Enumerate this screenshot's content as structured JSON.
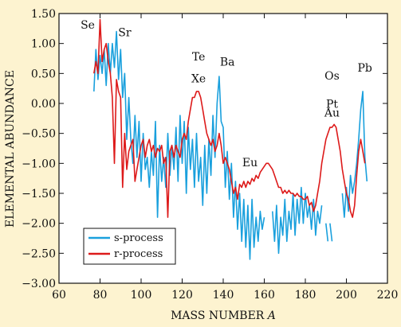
{
  "chart_data": {
    "type": "line",
    "title": "",
    "xlabel": "MASS NUMBER A",
    "ylabel": "ELEMENTAL ABUNDANCE",
    "xlim": [
      60,
      220
    ],
    "ylim": [
      -3.0,
      1.5
    ],
    "xticks": [
      "60",
      "80",
      "100",
      "120",
      "140",
      "160",
      "180",
      "200",
      "220"
    ],
    "yticks": [
      "1.50",
      "1.00",
      "0.50",
      "0.00",
      "−0.50",
      "−1.00",
      "−1.50",
      "−2.00",
      "−2.50",
      "−3.00"
    ],
    "grid": false,
    "legend": "bottom-left",
    "annotations": [
      {
        "text": "Se",
        "x": 74,
        "y": 1.25
      },
      {
        "text": "Sr",
        "x": 92,
        "y": 1.12
      },
      {
        "text": "Te",
        "x": 128,
        "y": 0.72
      },
      {
        "text": "Xe",
        "x": 128,
        "y": 0.35
      },
      {
        "text": "Ba",
        "x": 142,
        "y": 0.63
      },
      {
        "text": "Eu",
        "x": 153,
        "y": -1.05
      },
      {
        "text": "Os",
        "x": 193,
        "y": 0.4
      },
      {
        "text": "Pt",
        "x": 193,
        "y": -0.07
      },
      {
        "text": "Au",
        "x": 193,
        "y": -0.22
      },
      {
        "text": "Pb",
        "x": 209,
        "y": 0.53
      }
    ],
    "series": [
      {
        "name": "s-process",
        "color": "#1aa0dd",
        "segments": [
          [
            [
              77,
              0.2
            ],
            [
              78,
              0.9
            ],
            [
              79,
              0.4
            ],
            [
              80,
              0.8
            ],
            [
              81,
              0.5
            ],
            [
              82,
              0.9
            ],
            [
              83,
              0.3
            ],
            [
              84,
              1.0
            ],
            [
              85,
              0.5
            ],
            [
              86,
              1.0
            ],
            [
              87,
              0.6
            ],
            [
              88,
              1.2
            ],
            [
              89,
              0.4
            ],
            [
              90,
              0.9
            ],
            [
              91,
              0.1
            ],
            [
              92,
              0.5
            ],
            [
              93,
              -0.6
            ],
            [
              94,
              0.1
            ],
            [
              95,
              -0.6
            ],
            [
              96,
              -1.0
            ],
            [
              97,
              -0.2
            ],
            [
              98,
              -0.9
            ],
            [
              99,
              -0.3
            ],
            [
              100,
              -1.3
            ],
            [
              101,
              -0.5
            ],
            [
              102,
              -1.1
            ],
            [
              103,
              -0.9
            ],
            [
              104,
              -1.4
            ],
            [
              105,
              -0.8
            ],
            [
              106,
              -1.2
            ],
            [
              107,
              -0.3
            ],
            [
              108,
              -1.9
            ],
            [
              109,
              -0.7
            ],
            [
              110,
              -1.3
            ],
            [
              111,
              -0.9
            ],
            [
              112,
              -1.4
            ],
            [
              113,
              -0.5
            ],
            [
              114,
              -1.2
            ],
            [
              115,
              -0.7
            ],
            [
              116,
              -1.1
            ],
            [
              117,
              -0.4
            ],
            [
              118,
              -1.3
            ],
            [
              119,
              -0.2
            ],
            [
              120,
              -1.0
            ],
            [
              121,
              -0.3
            ],
            [
              122,
              -1.5
            ],
            [
              123,
              -0.4
            ],
            [
              124,
              -1.1
            ],
            [
              125,
              -0.6
            ],
            [
              126,
              -1.4
            ],
            [
              127,
              -0.5
            ],
            [
              128,
              -1.3
            ],
            [
              129,
              -0.9
            ],
            [
              130,
              -1.7
            ],
            [
              131,
              -0.7
            ],
            [
              132,
              -1.5
            ],
            [
              133,
              -0.6
            ],
            [
              134,
              -1.2
            ],
            [
              135,
              -0.2
            ],
            [
              136,
              -0.9
            ],
            [
              137,
              0.0
            ],
            [
              138,
              0.45
            ],
            [
              139,
              -0.3
            ],
            [
              140,
              -0.4
            ],
            [
              141,
              -1.4
            ],
            [
              142,
              -0.8
            ],
            [
              143,
              -1.6
            ],
            [
              144,
              -1.0
            ],
            [
              145,
              -1.9
            ],
            [
              146,
              -1.3
            ],
            [
              147,
              -2.1
            ],
            [
              148,
              -1.5
            ],
            [
              149,
              -2.3
            ],
            [
              150,
              -1.6
            ],
            [
              151,
              -2.4
            ],
            [
              152,
              -1.7
            ],
            [
              153,
              -2.6
            ],
            [
              154,
              -1.6
            ],
            [
              155,
              -2.4
            ],
            [
              156,
              -1.9
            ],
            [
              157,
              -2.3
            ],
            [
              158,
              -1.8
            ],
            [
              159,
              -2.1
            ],
            [
              160,
              -1.9
            ]
          ],
          [
            [
              164,
              -1.8
            ],
            [
              165,
              -2.3
            ],
            [
              166,
              -1.7
            ],
            [
              167,
              -2.5
            ],
            [
              168,
              -1.9
            ],
            [
              169,
              -2.2
            ],
            [
              170,
              -1.6
            ],
            [
              171,
              -2.3
            ],
            [
              172,
              -1.8
            ],
            [
              173,
              -2.1
            ],
            [
              174,
              -1.5
            ],
            [
              175,
              -2.2
            ],
            [
              176,
              -1.6
            ],
            [
              177,
              -2.0
            ],
            [
              178,
              -1.4
            ],
            [
              179,
              -2.0
            ],
            [
              180,
              -1.5
            ],
            [
              181,
              -1.9
            ],
            [
              182,
              -1.7
            ],
            [
              183,
              -2.1
            ],
            [
              184,
              -1.6
            ],
            [
              185,
              -2.2
            ],
            [
              186,
              -1.8
            ],
            [
              187,
              -2.0
            ],
            [
              188,
              -1.7
            ]
          ],
          [
            [
              190,
              -2.0
            ],
            [
              191,
              -2.3
            ]
          ],
          [
            [
              192,
              -2.0
            ],
            [
              193,
              -2.3
            ]
          ],
          [
            [
              198,
              -1.5
            ],
            [
              199,
              -1.9
            ],
            [
              200,
              -1.4
            ],
            [
              201,
              -1.8
            ],
            [
              202,
              -1.2
            ],
            [
              203,
              -1.5
            ],
            [
              204,
              -1.3
            ],
            [
              205,
              -1.0
            ],
            [
              206,
              -0.6
            ],
            [
              207,
              -0.1
            ],
            [
              208,
              0.2
            ],
            [
              209,
              -0.9
            ],
            [
              210,
              -1.3
            ]
          ]
        ]
      },
      {
        "name": "r-process",
        "color": "#dd1a1a",
        "segments": [
          [
            [
              77,
              0.5
            ],
            [
              78,
              0.7
            ],
            [
              79,
              0.5
            ],
            [
              80,
              1.4
            ],
            [
              81,
              0.7
            ],
            [
              82,
              0.9
            ],
            [
              83,
              1.0
            ],
            [
              84,
              0.7
            ],
            [
              85,
              0.5
            ],
            [
              86,
              0.1
            ],
            [
              87,
              -1.0
            ],
            [
              88,
              0.4
            ],
            [
              89,
              0.2
            ],
            [
              90,
              0.1
            ],
            [
              91,
              -1.4
            ],
            [
              92,
              -0.5
            ],
            [
              93,
              -1.1
            ],
            [
              94,
              -0.8
            ],
            [
              95,
              -0.7
            ],
            [
              96,
              -0.6
            ],
            [
              97,
              -1.3
            ],
            [
              98,
              -1.1
            ],
            [
              99,
              -0.9
            ],
            [
              100,
              -0.7
            ],
            [
              101,
              -0.6
            ],
            [
              102,
              -0.9
            ],
            [
              103,
              -0.7
            ],
            [
              104,
              -0.6
            ],
            [
              105,
              -0.8
            ],
            [
              106,
              -0.7
            ],
            [
              107,
              -0.9
            ],
            [
              108,
              -0.75
            ],
            [
              109,
              -0.8
            ],
            [
              110,
              -0.7
            ],
            [
              111,
              -1.0
            ],
            [
              112,
              -0.9
            ],
            [
              113,
              -1.9
            ],
            [
              114,
              -0.8
            ],
            [
              115,
              -0.7
            ],
            [
              116,
              -0.9
            ],
            [
              117,
              -0.7
            ],
            [
              118,
              -0.8
            ],
            [
              119,
              -0.9
            ],
            [
              120,
              -0.6
            ],
            [
              121,
              -0.5
            ],
            [
              122,
              -0.6
            ],
            [
              123,
              -0.3
            ],
            [
              124,
              -0.1
            ],
            [
              125,
              0.1
            ],
            [
              126,
              0.1
            ],
            [
              127,
              0.2
            ],
            [
              128,
              0.2
            ],
            [
              129,
              0.1
            ],
            [
              130,
              -0.1
            ],
            [
              131,
              -0.3
            ],
            [
              132,
              -0.5
            ],
            [
              133,
              -0.6
            ],
            [
              134,
              -0.7
            ],
            [
              135,
              -0.6
            ],
            [
              136,
              -0.8
            ],
            [
              137,
              -0.7
            ],
            [
              138,
              -0.5
            ],
            [
              139,
              -0.7
            ],
            [
              140,
              -1.0
            ],
            [
              141,
              -0.9
            ],
            [
              142,
              -1.0
            ],
            [
              143,
              -1.1
            ],
            [
              144,
              -1.3
            ],
            [
              145,
              -1.5
            ],
            [
              146,
              -1.4
            ],
            [
              147,
              -1.6
            ],
            [
              148,
              -1.35
            ],
            [
              149,
              -1.4
            ],
            [
              150,
              -1.3
            ],
            [
              151,
              -1.4
            ],
            [
              152,
              -1.3
            ],
            [
              153,
              -1.35
            ],
            [
              154,
              -1.25
            ],
            [
              155,
              -1.3
            ],
            [
              156,
              -1.2
            ],
            [
              157,
              -1.25
            ],
            [
              158,
              -1.15
            ],
            [
              159,
              -1.1
            ],
            [
              160,
              -1.05
            ],
            [
              161,
              -1.0
            ],
            [
              162,
              -1.0
            ],
            [
              163,
              -1.05
            ],
            [
              164,
              -1.1
            ],
            [
              165,
              -1.2
            ],
            [
              166,
              -1.3
            ],
            [
              167,
              -1.4
            ],
            [
              168,
              -1.4
            ],
            [
              169,
              -1.5
            ],
            [
              170,
              -1.45
            ],
            [
              171,
              -1.5
            ],
            [
              172,
              -1.45
            ],
            [
              173,
              -1.5
            ],
            [
              174,
              -1.5
            ],
            [
              175,
              -1.55
            ],
            [
              176,
              -1.5
            ],
            [
              177,
              -1.55
            ],
            [
              178,
              -1.55
            ],
            [
              179,
              -1.6
            ],
            [
              180,
              -1.6
            ],
            [
              181,
              -1.55
            ],
            [
              182,
              -1.7
            ],
            [
              183,
              -1.65
            ],
            [
              184,
              -1.8
            ],
            [
              185,
              -1.7
            ],
            [
              186,
              -1.5
            ],
            [
              187,
              -1.3
            ],
            [
              188,
              -1.0
            ],
            [
              189,
              -0.8
            ],
            [
              190,
              -0.6
            ],
            [
              191,
              -0.5
            ],
            [
              192,
              -0.4
            ],
            [
              193,
              -0.4
            ],
            [
              194,
              -0.35
            ],
            [
              195,
              -0.4
            ],
            [
              196,
              -0.6
            ],
            [
              197,
              -0.8
            ],
            [
              198,
              -1.1
            ],
            [
              199,
              -1.3
            ],
            [
              200,
              -1.5
            ],
            [
              201,
              -1.6
            ],
            [
              202,
              -1.8
            ],
            [
              203,
              -1.9
            ],
            [
              204,
              -1.7
            ],
            [
              205,
              -1.2
            ],
            [
              206,
              -0.8
            ],
            [
              207,
              -0.6
            ],
            [
              208,
              -0.8
            ],
            [
              209,
              -1.0
            ]
          ]
        ]
      }
    ]
  }
}
